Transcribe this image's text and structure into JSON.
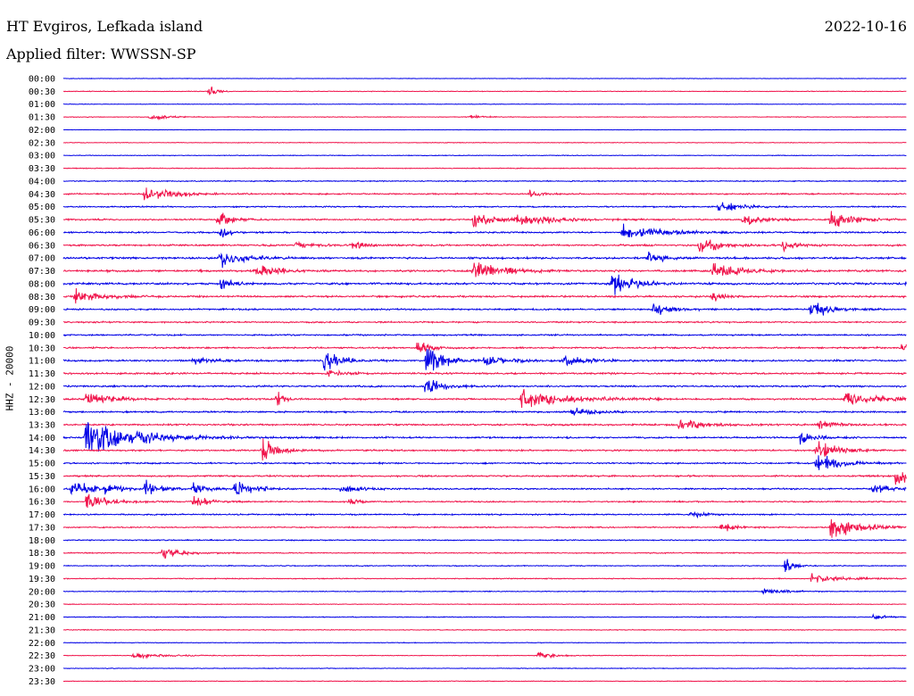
{
  "header": {
    "station": "HT Evgiros, Lefkada island",
    "date": "2022-10-16",
    "filter": "Applied filter: WWSSN-SP"
  },
  "channel_label": "HHZ - 20000",
  "colors": {
    "even_trace": "#0000e6",
    "odd_trace": "#f0144b"
  },
  "chart_data": {
    "type": "line",
    "subtype": "helicorder",
    "row_labels": [
      "00:00",
      "00:30",
      "01:00",
      "01:30",
      "02:00",
      "02:30",
      "03:00",
      "03:30",
      "04:00",
      "04:30",
      "05:00",
      "05:30",
      "06:00",
      "06:30",
      "07:00",
      "07:30",
      "08:00",
      "08:30",
      "09:00",
      "09:30",
      "10:00",
      "10:30",
      "11:00",
      "11:30",
      "12:00",
      "12:30",
      "13:00",
      "13:30",
      "14:00",
      "14:30",
      "15:00",
      "15:30",
      "16:00",
      "16:30",
      "17:00",
      "17:30",
      "18:00",
      "18:30",
      "19:00",
      "19:30",
      "20:00",
      "20:30",
      "21:00",
      "21:30",
      "22:00",
      "22:30",
      "23:00",
      "23:30"
    ],
    "minutes_per_row": 30,
    "series_colors": [
      "#0000e6",
      "#f0144b"
    ],
    "noise_level": [
      0.4,
      0.5,
      0.4,
      0.5,
      0.3,
      0.5,
      0.5,
      0.6,
      0.8,
      1.0,
      1.0,
      1.1,
      1.2,
      1.3,
      1.4,
      1.5,
      1.5,
      1.4,
      1.2,
      1.1,
      1.1,
      1.2,
      1.3,
      1.3,
      1.2,
      1.3,
      1.2,
      1.3,
      1.2,
      1.2,
      1.1,
      1.2,
      1.1,
      1.0,
      1.0,
      0.9,
      0.8,
      0.8,
      0.7,
      0.7,
      0.6,
      0.5,
      0.6,
      0.6,
      0.5,
      0.5,
      0.5,
      0.5
    ],
    "events": [
      {
        "row": 1,
        "minute": 5.2,
        "amp": 9,
        "duration": 0.5
      },
      {
        "row": 3,
        "minute": 3.1,
        "amp": 5,
        "duration": 1.2
      },
      {
        "row": 3,
        "minute": 14.5,
        "amp": 3,
        "duration": 1.0
      },
      {
        "row": 9,
        "minute": 2.9,
        "amp": 13,
        "duration": 1.8
      },
      {
        "row": 9,
        "minute": 16.6,
        "amp": 5,
        "duration": 0.8
      },
      {
        "row": 10,
        "minute": 23.3,
        "amp": 9,
        "duration": 1.5
      },
      {
        "row": 11,
        "minute": 5.5,
        "amp": 18,
        "duration": 0.8
      },
      {
        "row": 11,
        "minute": 14.6,
        "amp": 14,
        "duration": 1.5
      },
      {
        "row": 11,
        "minute": 16.1,
        "amp": 10,
        "duration": 2.6
      },
      {
        "row": 11,
        "minute": 27.3,
        "amp": 20,
        "duration": 1.4
      },
      {
        "row": 11,
        "minute": 24.2,
        "amp": 12,
        "duration": 1.2
      },
      {
        "row": 12,
        "minute": 19.9,
        "amp": 13,
        "duration": 2.5
      },
      {
        "row": 12,
        "minute": 5.6,
        "amp": 10,
        "duration": 0.6
      },
      {
        "row": 13,
        "minute": 8.3,
        "amp": 7,
        "duration": 1.0
      },
      {
        "row": 13,
        "minute": 10.2,
        "amp": 7,
        "duration": 1.0
      },
      {
        "row": 13,
        "minute": 22.6,
        "amp": 13,
        "duration": 1.4
      },
      {
        "row": 13,
        "minute": 25.6,
        "amp": 8,
        "duration": 0.9
      },
      {
        "row": 14,
        "minute": 5.6,
        "amp": 14,
        "duration": 1.6
      },
      {
        "row": 14,
        "minute": 20.8,
        "amp": 9,
        "duration": 1.0
      },
      {
        "row": 15,
        "minute": 6.8,
        "amp": 6,
        "duration": 1.0
      },
      {
        "row": 15,
        "minute": 7.0,
        "amp": 10,
        "duration": 1.2
      },
      {
        "row": 15,
        "minute": 14.6,
        "amp": 18,
        "duration": 1.8
      },
      {
        "row": 15,
        "minute": 23.1,
        "amp": 14,
        "duration": 1.8
      },
      {
        "row": 16,
        "minute": 19.5,
        "amp": 18,
        "duration": 1.5
      },
      {
        "row": 16,
        "minute": 30.0,
        "amp": 14,
        "duration": 0.8
      },
      {
        "row": 16,
        "minute": 5.6,
        "amp": 11,
        "duration": 0.8
      },
      {
        "row": 17,
        "minute": 0.4,
        "amp": 11,
        "duration": 1.8
      },
      {
        "row": 17,
        "minute": 23.1,
        "amp": 8,
        "duration": 0.8
      },
      {
        "row": 18,
        "minute": 21.0,
        "amp": 10,
        "duration": 1.3
      },
      {
        "row": 18,
        "minute": 26.6,
        "amp": 14,
        "duration": 1.3
      },
      {
        "row": 21,
        "minute": 12.6,
        "amp": 11,
        "duration": 1.0
      },
      {
        "row": 21,
        "minute": 29.8,
        "amp": 6,
        "duration": 0.8
      },
      {
        "row": 22,
        "minute": 9.3,
        "amp": 22,
        "duration": 1.0
      },
      {
        "row": 22,
        "minute": 12.9,
        "amp": 26,
        "duration": 1.3
      },
      {
        "row": 22,
        "minute": 15.0,
        "amp": 10,
        "duration": 1.5
      },
      {
        "row": 22,
        "minute": 17.8,
        "amp": 9,
        "duration": 1.5
      },
      {
        "row": 22,
        "minute": 4.6,
        "amp": 5,
        "duration": 1.5
      },
      {
        "row": 23,
        "minute": 9.4,
        "amp": 6,
        "duration": 1.0
      },
      {
        "row": 24,
        "minute": 12.9,
        "amp": 16,
        "duration": 1.0
      },
      {
        "row": 25,
        "minute": 0.8,
        "amp": 12,
        "duration": 1.8
      },
      {
        "row": 25,
        "minute": 16.3,
        "amp": 16,
        "duration": 3.0
      },
      {
        "row": 25,
        "minute": 27.8,
        "amp": 14,
        "duration": 2.0
      },
      {
        "row": 25,
        "minute": 7.6,
        "amp": 12,
        "duration": 0.5
      },
      {
        "row": 26,
        "minute": 18.1,
        "amp": 7,
        "duration": 1.5
      },
      {
        "row": 27,
        "minute": 21.9,
        "amp": 10,
        "duration": 1.8
      },
      {
        "row": 27,
        "minute": 26.9,
        "amp": 8,
        "duration": 1.0
      },
      {
        "row": 28,
        "minute": 0.8,
        "amp": 30,
        "duration": 3.5
      },
      {
        "row": 28,
        "minute": 26.2,
        "amp": 12,
        "duration": 1.0
      },
      {
        "row": 29,
        "minute": 7.1,
        "amp": 22,
        "duration": 1.0
      },
      {
        "row": 29,
        "minute": 26.8,
        "amp": 16,
        "duration": 1.5
      },
      {
        "row": 30,
        "minute": 26.8,
        "amp": 18,
        "duration": 1.5
      },
      {
        "row": 31,
        "minute": 29.6,
        "amp": 14,
        "duration": 2.0
      },
      {
        "row": 32,
        "minute": 0.3,
        "amp": 14,
        "duration": 1.3
      },
      {
        "row": 32,
        "minute": 1.5,
        "amp": 10,
        "duration": 0.9
      },
      {
        "row": 32,
        "minute": 2.9,
        "amp": 12,
        "duration": 1.0
      },
      {
        "row": 32,
        "minute": 4.6,
        "amp": 10,
        "duration": 1.0
      },
      {
        "row": 32,
        "minute": 6.1,
        "amp": 16,
        "duration": 1.2
      },
      {
        "row": 32,
        "minute": 9.9,
        "amp": 7,
        "duration": 1.5
      },
      {
        "row": 32,
        "minute": 28.8,
        "amp": 7,
        "duration": 1.5
      },
      {
        "row": 33,
        "minute": 0.8,
        "amp": 14,
        "duration": 1.5
      },
      {
        "row": 33,
        "minute": 4.6,
        "amp": 10,
        "duration": 1.0
      },
      {
        "row": 33,
        "minute": 10.2,
        "amp": 7,
        "duration": 0.6
      },
      {
        "row": 34,
        "minute": 22.3,
        "amp": 5,
        "duration": 1.0
      },
      {
        "row": 35,
        "minute": 23.4,
        "amp": 8,
        "duration": 1.0
      },
      {
        "row": 35,
        "minute": 27.3,
        "amp": 18,
        "duration": 2.0
      },
      {
        "row": 37,
        "minute": 3.5,
        "amp": 11,
        "duration": 1.5
      },
      {
        "row": 38,
        "minute": 25.7,
        "amp": 14,
        "duration": 0.6
      },
      {
        "row": 39,
        "minute": 26.6,
        "amp": 6,
        "duration": 2.5
      },
      {
        "row": 40,
        "minute": 24.9,
        "amp": 5,
        "duration": 1.5
      },
      {
        "row": 42,
        "minute": 28.8,
        "amp": 6,
        "duration": 0.6
      },
      {
        "row": 45,
        "minute": 2.5,
        "amp": 5,
        "duration": 2.0
      },
      {
        "row": 45,
        "minute": 16.9,
        "amp": 9,
        "duration": 1.0
      }
    ]
  }
}
